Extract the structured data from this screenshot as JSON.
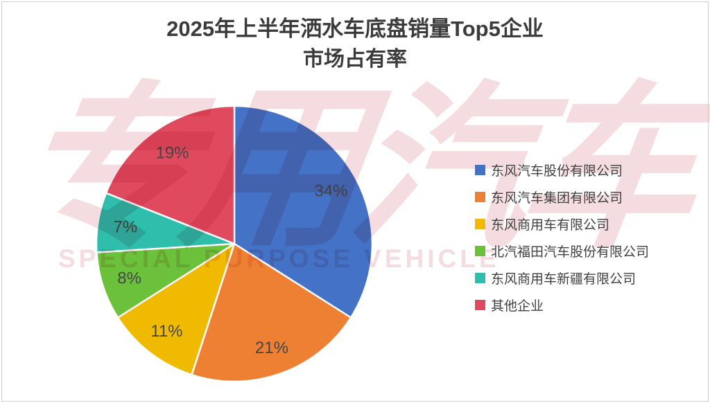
{
  "canvas": {
    "background": "#ffffff",
    "frame_border_color": "#ccd0d4"
  },
  "title": {
    "line1": "2025年上半年洒水车底盘销量Top5企业",
    "line2": "市场占有率",
    "color": "#3b3b3b"
  },
  "watermark": {
    "text": "专用汽车",
    "subtext": "SPECIAL PURPOSE VEHICLE",
    "color": "#f5dce0"
  },
  "chart_data": {
    "type": "pie",
    "title": "2025年上半年洒水车底盘销量Top5企业市场占有率",
    "unit": "percent",
    "direction": "clockwise",
    "start_angle": "12-oclock",
    "legend_position": "right",
    "label_color": "#454545",
    "label_font_size": 24,
    "slice_border_color": "#ffffff",
    "series": [
      {
        "name": "东风汽车股份有限公司",
        "value": 34,
        "label": "34%",
        "color": "#4472C6"
      },
      {
        "name": "东风汽车集团有限公司",
        "value": 21,
        "label": "21%",
        "color": "#EE8033"
      },
      {
        "name": "东风商用车有限公司",
        "value": 11,
        "label": "11%",
        "color": "#EFBA00"
      },
      {
        "name": "北汽福田汽车股份有限公司",
        "value": 8,
        "label": "8%",
        "color": "#6CC13B"
      },
      {
        "name": "东风商用车新疆有限公司",
        "value": 7,
        "label": "7%",
        "color": "#2FBEAB"
      },
      {
        "name": "其他企业",
        "value": 19,
        "label": "19%",
        "color": "#E04A5F"
      }
    ]
  }
}
